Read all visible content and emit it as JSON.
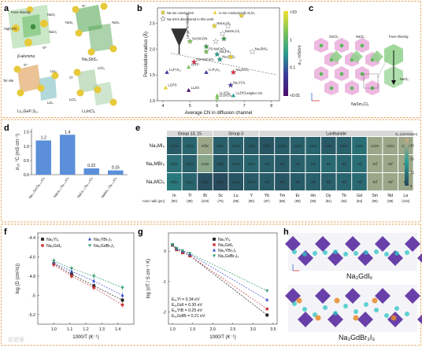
{
  "panels": {
    "a": {
      "label": "a",
      "structures": [
        {
          "name": "β-alumina",
          "labels": [
            "Face-sharing",
            "High-CN",
            "NaO₃",
            "NaO₂",
            "O²⁻"
          ]
        },
        {
          "name": "Na₃SbS₄",
          "labels": [
            "S²⁻",
            "NaS₆",
            "NaS₆"
          ]
        },
        {
          "name": "Li₁₀GeP₂S₁₂",
          "labels": [
            "S²⁻",
            "Tet site",
            "LiS₄",
            "LiS₄"
          ]
        },
        {
          "name": "Li₃InCl₆",
          "labels": [
            "Cl⁻",
            "LiCl₆",
            "LiCl₆"
          ]
        }
      ]
    },
    "b": {
      "label": "b"
    },
    "c": {
      "label": "c",
      "name": "NaSm₂Cl₆",
      "labels": [
        "SmCl₆",
        "NaCl₆",
        "Face-sharing",
        "NaCl₆"
      ]
    },
    "d": {
      "label": "d"
    },
    "e": {
      "label": "e"
    },
    "f": {
      "label": "f"
    },
    "g": {
      "label": "g"
    },
    "h": {
      "label": "h",
      "structures": [
        "Na₃GdI₆",
        "Na₃GdBr₃I₃"
      ]
    }
  },
  "watermark": "实验室",
  "chart_data": [
    {
      "id": "b",
      "type": "scatter",
      "title": "",
      "xlabel": "Average CN in diffusion channel",
      "ylabel": "Percolation radius (Å)",
      "xlim": [
        3.8,
        8.3
      ],
      "ylim": [
        1.0,
        2.8
      ],
      "xticks": [
        4,
        5,
        6,
        7,
        8
      ],
      "yticks": [
        1.0,
        1.5,
        2.0,
        2.5
      ],
      "legend": [
        {
          "name": "Na-ion conductors",
          "shape": "star",
          "color": "#e6d02a"
        },
        {
          "name": "Li-ion conductors",
          "shape": "triangle",
          "color": "#e6d02a"
        },
        {
          "name": "Na-SICs discovered in this work",
          "shape": "star-open",
          "color": "#888888"
        }
      ],
      "colorbar": {
        "label": "σ₂₅ mS/cm",
        "ticks": [
          ">10",
          "1",
          "0.1",
          "<0.01"
        ],
        "colors": [
          "#f0e030",
          "#7bc25a",
          "#2a9d8f",
          "#3b3b9a",
          "#4b0f6b"
        ]
      },
      "trend_labels": [
        "Larger bottleneck",
        "Higher CN"
      ],
      "points": [
        {
          "label": "NaLa₂Cl₆",
          "x": 5.9,
          "y": 2.45,
          "color": "#e6d02a",
          "shape": "star"
        },
        {
          "label": "β-Al₂O₃",
          "x": 6.9,
          "y": 2.65,
          "color": "#e6d02a",
          "shape": "star"
        },
        {
          "label": "",
          "x": 6.4,
          "y": 2.45,
          "color": "#aaaaaa",
          "shape": "star-open"
        },
        {
          "label": "NaSm₂Cl₆",
          "x": 6.2,
          "y": 2.3,
          "color": "#aaaaaa",
          "shape": "star-open"
        },
        {
          "label": "NASICON",
          "x": 5.0,
          "y": 2.15,
          "color": "#7bc25a",
          "shape": "star"
        },
        {
          "label": "",
          "x": 6.25,
          "y": 2.2,
          "color": "#3d9a4a",
          "shape": "star"
        },
        {
          "label": "",
          "x": 5.95,
          "y": 2.15,
          "color": "#aaaaaa",
          "shape": "star-open"
        },
        {
          "label": "",
          "x": 5.6,
          "y": 2.05,
          "color": "#3d9a4a",
          "shape": "star"
        },
        {
          "label": "P2-NaCoO₂",
          "x": 5.6,
          "y": 1.95,
          "color": "#7bc25a",
          "shape": "star"
        },
        {
          "label": "Na₃SbS₄",
          "x": 7.3,
          "y": 1.95,
          "color": "#aaaaaa",
          "shape": "star-open"
        },
        {
          "label": "Na₃PS₄",
          "x": 6.0,
          "y": 1.9,
          "color": "#2a9d8f",
          "shape": "star"
        },
        {
          "label": "Na₃SbS₄",
          "x": 6.1,
          "y": 1.8,
          "color": "#2a9d8f",
          "shape": "star"
        },
        {
          "label": "",
          "x": 6.5,
          "y": 1.85,
          "color": "#e6d02a",
          "shape": "star"
        },
        {
          "label": "O3-NaCoO₂",
          "x": 5.15,
          "y": 1.75,
          "color": "#e0324a",
          "shape": "star"
        },
        {
          "label": "Li₃P₇S₁₁",
          "x": 4.15,
          "y": 1.55,
          "color": "#3b3b9a",
          "shape": "triangle"
        },
        {
          "label": "LATP",
          "x": 4.95,
          "y": 1.65,
          "color": "#7bc25a",
          "shape": "triangle"
        },
        {
          "label": "Li₇P₃S₁₁",
          "x": 5.6,
          "y": 1.55,
          "color": "#3b3b9a",
          "shape": "triangle"
        },
        {
          "label": "Na₂ZrCl₆",
          "x": 6.6,
          "y": 1.55,
          "color": "#e0324a",
          "shape": "star"
        },
        {
          "label": "LGPS",
          "x": 4.1,
          "y": 1.25,
          "color": "#e6d02a",
          "shape": "triangle"
        },
        {
          "label": "LLZO",
          "x": 4.95,
          "y": 1.2,
          "color": "#4b0f6b",
          "shape": "triangle"
        },
        {
          "label": "Na₃YCl₆",
          "x": 6.5,
          "y": 1.3,
          "color": "#5a4fb0",
          "shape": "star"
        },
        {
          "label": "Li₃YCl₆",
          "x": 6.0,
          "y": 1.1,
          "color": "#7bc25a",
          "shape": "triangle"
        },
        {
          "label": "Li₃ScCl₆",
          "x": 6.0,
          "y": 1.05,
          "color": "#7bc25a",
          "shape": "triangle"
        },
        {
          "label": "Li₂ZrCl₆",
          "x": 6.6,
          "y": 1.1,
          "color": "#2a9d8f",
          "shape": "triangle"
        }
      ]
    },
    {
      "id": "d",
      "type": "bar",
      "ylabel": "σ₂₅ °C (mS cm⁻¹)",
      "ylim": [
        0,
        1.6
      ],
      "yticks": [
        0.0,
        0.5,
        1.0,
        1.5
      ],
      "categories": [
        "Na₀.₅SmTa₀.₅₅Cl₆",
        "NaLa₀.₅Ta₀.₅₅Cl₆",
        "NaCe₀.₅Ta₀.₅₅Cl₆",
        "NaNd₀.₅Ta₀.₅₅Cl₆"
      ],
      "values": [
        1.2,
        1.4,
        0.22,
        0.15
      ],
      "value_labels": [
        "1.2",
        "1.4",
        "0.22",
        "0.15"
      ],
      "color": "#5b8fd9"
    },
    {
      "id": "e",
      "type": "heatmap",
      "groups": [
        {
          "label": "Group 13, 15",
          "cols": [
            0,
            2
          ]
        },
        {
          "label": "Group 3",
          "cols": [
            3,
            5
          ]
        },
        {
          "label": "Lanthanide",
          "cols": [
            6,
            15
          ]
        }
      ],
      "rows": [
        "Na₃MI₆",
        "Na₃MBr₆",
        "Na₃MCl₆"
      ],
      "columns": [
        "In",
        "Tl",
        "Bi",
        "Sc",
        "Lu",
        "Y",
        "Yb",
        "Tm",
        "Er",
        "Ho",
        "Dy",
        "Tb",
        "Gd",
        "Sm",
        "Nd",
        "La"
      ],
      "ionic_radii": [
        "(80)",
        "(89)",
        "(103)",
        "(75)",
        "(86)",
        "(90)",
        "(87)",
        "(88)",
        "(89)",
        "(90)",
        "(91)",
        "(92)",
        "(94)",
        "(96)",
        "(98)",
        "(103)"
      ],
      "ionic_label": "Ionic radii (pm)",
      "colorbar": {
        "label": "E₀ (meV/atom)",
        "ticks": [
          "30",
          "20",
          "10",
          "0"
        ],
        "min": 0,
        "max": 35
      },
      "cells": [
        [
          {
            "t": "C2/m",
            "v": 4
          },
          {
            "t": "C2/m",
            "v": 6
          },
          {
            "t": "P3̅1c",
            "v": 30
          },
          {
            "t": "P3̅1c",
            "v": 5
          },
          {
            "t": "C2/m",
            "v": 5
          },
          {
            "t": "C2/m",
            "v": 4
          },
          {
            "t": "C2/m",
            "v": 3
          },
          {
            "t": "C2/m",
            "v": 4
          },
          {
            "t": "C2/m",
            "v": 5
          },
          {
            "t": "C2/m",
            "v": 6
          },
          {
            "t": "C2/m",
            "v": 4
          },
          {
            "t": "C2/m",
            "v": 5
          },
          {
            "t": "C2/m",
            "v": 8
          },
          {
            "t": "C2/m",
            "v": 30
          },
          {
            "t": "C2/m",
            "v": 30
          },
          {
            "t": "C2/m",
            "v": 30
          }
        ],
        [
          {
            "t": "P3̅1c",
            "v": 8
          },
          {
            "t": "C2/m",
            "v": 5
          },
          {
            "t": "C2/m",
            "v": 28
          },
          {
            "t": "P3̅1c",
            "v": 4
          },
          {
            "t": "P2₁/n",
            "v": 5
          },
          {
            "t": "P2₁/n",
            "v": 6
          },
          {
            "t": "R3̅",
            "v": 5
          },
          {
            "t": "R3̅",
            "v": 4
          },
          {
            "t": "R3̅",
            "v": 5
          },
          {
            "t": "R3̅",
            "v": 6
          },
          {
            "t": "R3̅",
            "v": 7
          },
          {
            "t": "R3̅",
            "v": 6
          },
          {
            "t": "R3̅",
            "v": 8
          },
          {
            "t": "R3̅",
            "v": 30
          },
          {
            "t": "R3̅",
            "v": 30
          },
          {
            "t": "R3̅",
            "v": 30
          }
        ],
        [
          {
            "t": "P3̅1c",
            "v": 10
          },
          {
            "t": "P2₁/n",
            "v": 6
          },
          {
            "t": "C2/m",
            "v": 2
          },
          {
            "t": "P3̅1c",
            "v": 1
          },
          {
            "t": "P2₁/n",
            "v": 3
          },
          {
            "t": "P2₁/n",
            "v": 4
          },
          {
            "t": "R3̅",
            "v": 4
          },
          {
            "t": "R3̅",
            "v": 3
          },
          {
            "t": "R3̅",
            "v": 4
          },
          {
            "t": "R3̅",
            "v": 5
          },
          {
            "t": "R3̅",
            "v": 5
          },
          {
            "t": "R3̅",
            "v": 6
          },
          {
            "t": "R3̅",
            "v": 7
          },
          {
            "t": "R3̅",
            "v": 30
          },
          {
            "t": "R3̅",
            "v": 30
          },
          {
            "t": "R3̅",
            "v": 30
          }
        ]
      ]
    },
    {
      "id": "f",
      "type": "line",
      "xlabel": "1000/T (K⁻¹)",
      "ylabel": "log (D (cm²/s))",
      "xlim": [
        0.9,
        1.5
      ],
      "ylim": [
        -5.3,
        -4.35
      ],
      "xticks": [
        1.0,
        1.1,
        1.2,
        1.3,
        1.4
      ],
      "yticks": [
        -4.4,
        -4.6,
        -4.8,
        -5.0,
        -5.2
      ],
      "x": [
        1.0,
        1.111,
        1.25,
        1.429
      ],
      "series": [
        {
          "name": "Na₃YI₆",
          "color": "#222222",
          "marker": "square",
          "values": [
            -4.67,
            -4.78,
            -4.9,
            -5.05
          ]
        },
        {
          "name": "Na₃YBr₃I₃",
          "color": "#3b4ad1",
          "marker": "triangle",
          "values": [
            -4.66,
            -4.75,
            -4.85,
            -5.0
          ]
        },
        {
          "name": "Na₃GdI₆",
          "color": "#d03a3a",
          "marker": "circle",
          "values": [
            -4.68,
            -4.8,
            -4.92,
            -5.1
          ]
        },
        {
          "name": "Na₃GdBr₃I₃",
          "color": "#2e9c6a",
          "marker": "triangle-down",
          "values": [
            -4.64,
            -4.72,
            -4.8,
            -4.92
          ]
        }
      ]
    },
    {
      "id": "g",
      "type": "line",
      "xlabel": "1000/T (K⁻¹)",
      "ylabel": "log (σT / S cm⁻¹ K)",
      "xlim": [
        0.9,
        3.6
      ],
      "ylim": [
        -2.4,
        0.6
      ],
      "xticks": [
        1.0,
        1.5,
        2.0,
        2.5,
        3.0,
        3.5
      ],
      "yticks": [
        0,
        -1,
        -2
      ],
      "x": [
        1.0,
        1.1,
        1.25,
        1.43,
        3.35
      ],
      "series": [
        {
          "name": "Na₃YI₆",
          "color": "#222222",
          "marker": "square",
          "values": [
            0.2,
            0.05,
            -0.05,
            -0.15,
            -2.1
          ]
        },
        {
          "name": "Na₃GdI₆",
          "color": "#d03a3a",
          "marker": "circle",
          "values": [
            0.2,
            0.05,
            -0.05,
            -0.15,
            -1.9
          ]
        },
        {
          "name": "Na₃YBr₃I₃",
          "color": "#3b4ad1",
          "marker": "triangle",
          "values": [
            0.22,
            0.08,
            0.0,
            -0.1,
            -1.6
          ]
        },
        {
          "name": "Na₃GdBr₃I₃",
          "color": "#2e9c6a",
          "marker": "triangle-down",
          "values": [
            0.22,
            0.1,
            0.02,
            -0.07,
            -1.3
          ]
        }
      ],
      "activation_energies": [
        {
          "label": "Eₐ,YI = 0.34 eV",
          "color": "#222222"
        },
        {
          "label": "Eₐ,GdI = 0.30 eV",
          "color": "#d03a3a"
        },
        {
          "label": "Eₐ,YIB = 0.25 eV",
          "color": "#3b4ad1"
        },
        {
          "label": "Eₐ,GdIB = 0.21 eV",
          "color": "#2e9c6a"
        }
      ]
    }
  ]
}
